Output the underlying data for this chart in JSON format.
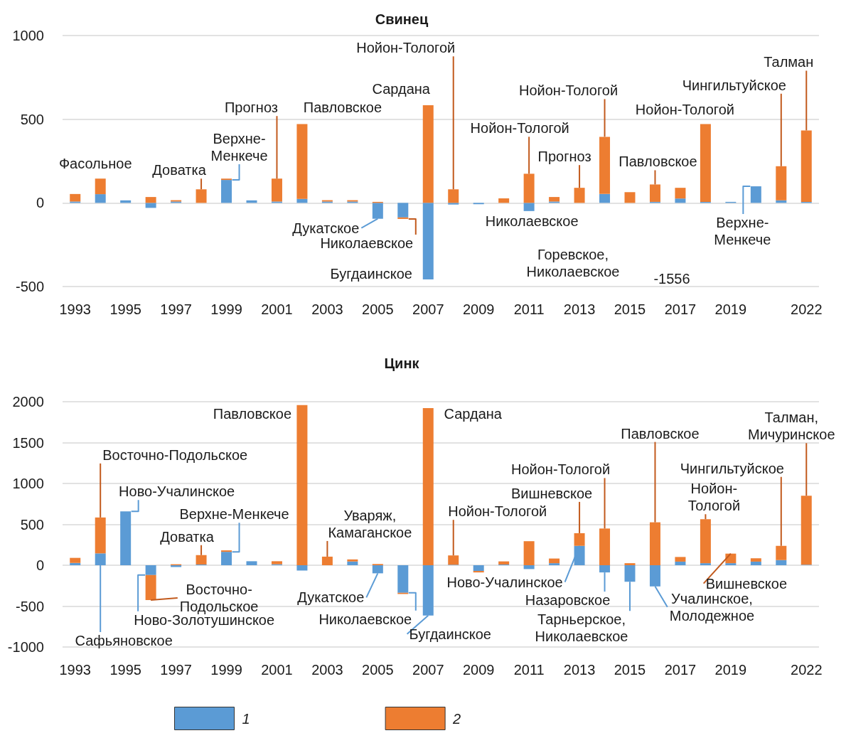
{
  "chart_data": [
    {
      "type": "bar",
      "title": "Свинец",
      "stacked": true,
      "grid": "y",
      "x": [
        1993,
        1994,
        1995,
        1996,
        1997,
        1998,
        1999,
        2000,
        2001,
        2002,
        2003,
        2004,
        2005,
        2006,
        2007,
        2008,
        2009,
        2010,
        2011,
        2012,
        2013,
        2014,
        2015,
        2016,
        2017,
        2018,
        2019,
        2020,
        2021,
        2022
      ],
      "xlim": [
        1992.5,
        2022.5
      ],
      "xticks": [
        1993,
        1995,
        1997,
        1999,
        2001,
        2003,
        2005,
        2007,
        2009,
        2011,
        2013,
        2015,
        2017,
        2019,
        2022
      ],
      "ylim": [
        -500,
        1000
      ],
      "yticks": [
        -500,
        0,
        500,
        1000
      ],
      "series": [
        {
          "color": "#5b9bd5",
          "values": [
            8,
            52,
            15,
            -30,
            8,
            0,
            137,
            15,
            8,
            24,
            8,
            8,
            -95,
            -87,
            -458,
            -10,
            -8,
            0,
            -49,
            8,
            0,
            53,
            null,
            6,
            26,
            6,
            6,
            99,
            15,
            6
          ]
        },
        {
          "color": "#ed7d31",
          "values": [
            45,
            93,
            0,
            35,
            8,
            81,
            8,
            0,
            137,
            447,
            8,
            8,
            6,
            -9,
            584,
            81,
            0,
            27,
            174,
            27,
            90,
            342,
            64,
            104,
            64,
            465,
            0,
            0,
            204,
            427
          ]
        }
      ],
      "annotations": [
        {
          "text": "Фасольное",
          "x": 1994,
          "y": 145
        },
        {
          "text": "Доватка",
          "x": 1998,
          "y": 81
        },
        {
          "text": "Верхне-\nМенкече",
          "x": 1999,
          "y": 137
        },
        {
          "text": "Прогноз",
          "x": 2001,
          "y": 145
        },
        {
          "text": "Павловское",
          "x": 2002,
          "y": 471
        },
        {
          "text": "Сардана",
          "x": 2007,
          "y": 584
        },
        {
          "text": "Нойон-Тологой",
          "x": 2008,
          "y": 81
        },
        {
          "text": "Дукатское",
          "x": 2005,
          "y": -95
        },
        {
          "text": "Николаевское",
          "x": 2006,
          "y": -96
        },
        {
          "text": "Бугдаинское",
          "x": 2007,
          "y": -458
        },
        {
          "text": "Нойон-Тологой",
          "x": 2011,
          "y": 174
        },
        {
          "text": "Николаевское",
          "x": 2011,
          "y": -49
        },
        {
          "text": "Прогноз",
          "x": 2013,
          "y": 90
        },
        {
          "text": "Нойон-Тологой",
          "x": 2014,
          "y": 395
        },
        "Горевское,\nНиколаевское",
        {
          "text": "Павловское",
          "x": 2016,
          "y": 110
        },
        {
          "text": "Нойон-Тологой",
          "x": 2018,
          "y": 471
        },
        {
          "text": "Чингильтуйское",
          "x": 2021,
          "y": 219
        },
        {
          "text": "Талман",
          "x": 2022,
          "y": 433
        },
        {
          "text": "Верхне-\nМенкече",
          "x": 2020,
          "y": 99
        },
        "-1556"
      ]
    },
    {
      "type": "bar",
      "title": "Цинк",
      "stacked": true,
      "grid": "y",
      "legend": "bottom",
      "x": [
        1993,
        1994,
        1995,
        1996,
        1997,
        1998,
        1999,
        2000,
        2001,
        2002,
        2003,
        2004,
        2005,
        2006,
        2007,
        2008,
        2009,
        2010,
        2011,
        2012,
        2013,
        2014,
        2015,
        2016,
        2017,
        2018,
        2019,
        2020,
        2021,
        2022
      ],
      "xlim": [
        1992.5,
        2022.5
      ],
      "xticks": [
        1993,
        1995,
        1997,
        1999,
        2001,
        2003,
        2005,
        2007,
        2009,
        2011,
        2013,
        2015,
        2017,
        2019,
        2022
      ],
      "ylim": [
        -1000,
        2000
      ],
      "yticks": [
        -1000,
        -500,
        0,
        500,
        1000,
        1500,
        2000
      ],
      "series": [
        {
          "name": "1",
          "color": "#5b9bd5",
          "values": [
            28,
            145,
            658,
            -120,
            -22,
            9,
            164,
            49,
            12,
            -65,
            0,
            46,
            -99,
            -337,
            -615,
            6,
            -70,
            9,
            -47,
            25,
            237,
            -88,
            -202,
            -259,
            44,
            25,
            25,
            44,
            63,
            6
          ]
        },
        {
          "name": "2",
          "color": "#ed7d31",
          "values": [
            62,
            439,
            0,
            -306,
            12,
            115,
            18,
            0,
            37,
            1959,
            105,
            25,
            15,
            -15,
            1922,
            114,
            -18,
            38,
            294,
            57,
            155,
            449,
            25,
            525,
            57,
            538,
            117,
            41,
            174,
            844
          ]
        }
      ],
      "annotations": [
        {
          "text": "Восточно-Подольское",
          "x": 1994,
          "y": 584
        },
        {
          "text": "Ново-Учалинское",
          "x": 1995,
          "y": 658
        },
        {
          "text": "Верхне-Менкече",
          "x": 1999,
          "y": 164
        },
        {
          "text": "Доватка",
          "x": 1998,
          "y": 124
        },
        {
          "text": "Павловское",
          "x": 2002,
          "y": 1959
        },
        {
          "text": "Уваряж,\nКамаганское",
          "x": 2003,
          "y": 105
        },
        {
          "text": "Сардана",
          "x": 2007,
          "y": 1922
        },
        {
          "text": "Сафьяновское",
          "x": 1994,
          "y": 0
        },
        {
          "text": "Ново-Золотушинское",
          "x": 1996,
          "y": -120
        },
        {
          "text": "Восточно-\nПодольское",
          "x": 1996,
          "y": -426
        },
        {
          "text": "Дукатское",
          "x": 2005,
          "y": -99
        },
        {
          "text": "Николаевское",
          "x": 2006,
          "y": -337
        },
        {
          "text": "Бугдаинское",
          "x": 2007,
          "y": -615
        },
        {
          "text": "Нойон-Тологой",
          "x": 2008,
          "y": 120
        },
        {
          "text": "Ново-Учалинское",
          "x": 2013,
          "y": 237
        },
        {
          "text": "Вишневское",
          "x": 2013,
          "y": 392
        },
        {
          "text": "Нойон-Тологой",
          "x": 2014,
          "y": 449
        },
        {
          "text": "Назаровское",
          "x": 2014,
          "y": -88
        },
        {
          "text": "Тарньерское,\nНиколаевское",
          "x": 2015,
          "y": -202
        },
        {
          "text": "Павловское",
          "x": 2016,
          "y": 525
        },
        {
          "text": "Учалинское,\nМолодежное",
          "x": 2016,
          "y": -259
        },
        {
          "text": "Чингильтуйское",
          "x": 2021,
          "y": 237
        },
        {
          "text": "Нойон-\nТологой",
          "x": 2018,
          "y": 563
        },
        {
          "text": "Вишневское",
          "x": 2019,
          "y": 142
        },
        {
          "text": "Талман,\nМичуринское",
          "x": 2022,
          "y": 850
        }
      ]
    }
  ]
}
